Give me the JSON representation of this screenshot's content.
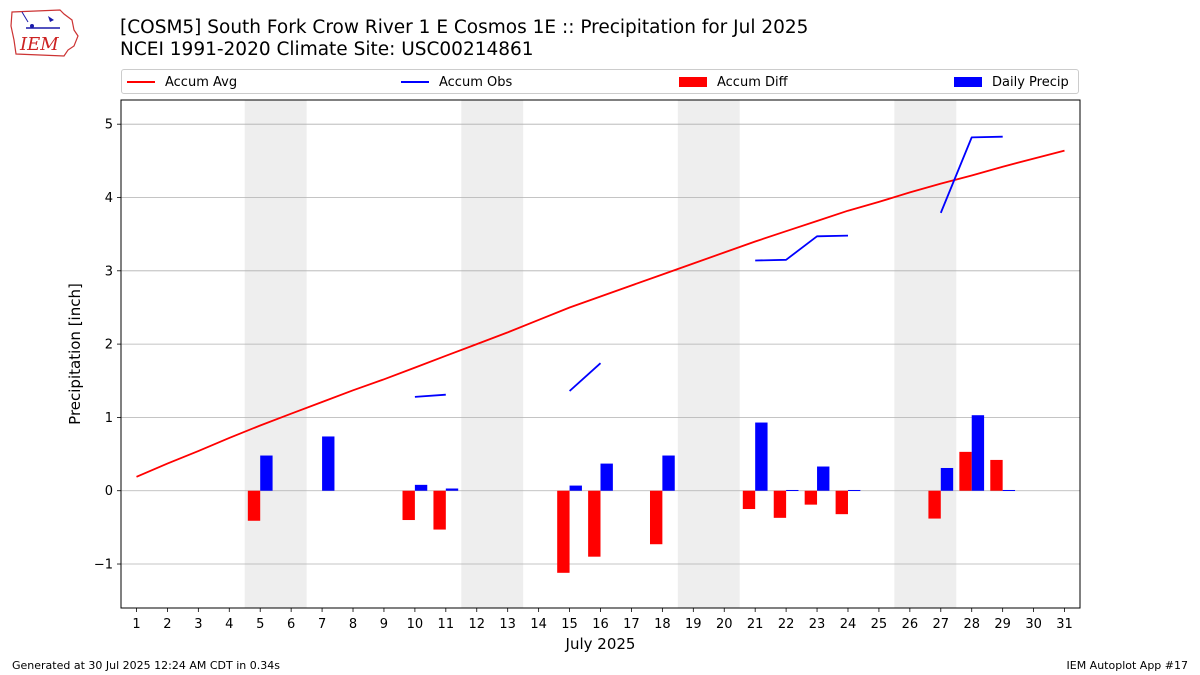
{
  "header": {
    "title_line1": "[COSM5] South Fork Crow River 1 E Cosmos 1E :: Precipitation for Jul 2025",
    "title_line2": "NCEI 1991-2020 Climate Site: USC00214861"
  },
  "logo": {
    "text": "IEM"
  },
  "legend": {
    "items": [
      {
        "label": "Accum Avg",
        "color": "#ff0000",
        "kind": "line"
      },
      {
        "label": "Accum Obs",
        "color": "#0000ff",
        "kind": "line"
      },
      {
        "label": "Accum Diff",
        "color": "#ff0000",
        "kind": "box"
      },
      {
        "label": "Daily Precip",
        "color": "#0000ff",
        "kind": "box"
      }
    ],
    "placement": "top, above plot"
  },
  "footer": {
    "generated": "Generated at 30 Jul 2025 12:24 AM CDT in 0.34s",
    "app": "IEM Autoplot App #17"
  },
  "chart_data": {
    "type": "bar",
    "title": "",
    "xlabel": "July 2025",
    "ylabel": "Precipitation [inch]",
    "xlim": [
      0.5,
      31.5
    ],
    "ylim": [
      -1.6,
      5.33
    ],
    "yticks": [
      -1,
      0,
      1,
      2,
      3,
      4,
      5
    ],
    "ytick_labels": [
      "−1",
      "0",
      "1",
      "2",
      "3",
      "4",
      "5"
    ],
    "x": [
      1,
      2,
      3,
      4,
      5,
      6,
      7,
      8,
      9,
      10,
      11,
      12,
      13,
      14,
      15,
      16,
      17,
      18,
      19,
      20,
      21,
      22,
      23,
      24,
      25,
      26,
      27,
      28,
      29,
      30,
      31
    ],
    "grid": "horizontal",
    "weekend_shading": [
      [
        4.5,
        6.5
      ],
      [
        11.5,
        13.5
      ],
      [
        18.5,
        20.5
      ],
      [
        25.5,
        27.5
      ]
    ],
    "series": [
      {
        "name": "Accum Avg",
        "kind": "line",
        "color": "#ff0000",
        "values": [
          0.19,
          0.37,
          0.54,
          0.72,
          0.89,
          1.05,
          1.21,
          1.37,
          1.52,
          1.68,
          1.84,
          2.0,
          2.16,
          2.33,
          2.5,
          2.65,
          2.8,
          2.95,
          3.1,
          3.25,
          3.4,
          3.54,
          3.68,
          3.82,
          3.94,
          4.07,
          4.19,
          4.3,
          4.42,
          4.53,
          4.64
        ]
      },
      {
        "name": "Accum Obs",
        "kind": "line",
        "color": "#0000ff",
        "values": [
          null,
          null,
          null,
          null,
          null,
          null,
          null,
          null,
          null,
          1.28,
          1.31,
          null,
          null,
          null,
          1.36,
          1.74,
          null,
          null,
          null,
          null,
          3.14,
          3.15,
          3.47,
          3.48,
          null,
          null,
          3.79,
          4.82,
          4.83,
          null,
          null
        ]
      },
      {
        "name": "Accum Diff",
        "kind": "bar",
        "color": "#ff0000",
        "offset": -0.2,
        "values": [
          null,
          null,
          null,
          null,
          -0.41,
          null,
          null,
          null,
          null,
          -0.4,
          -0.53,
          null,
          null,
          null,
          -1.12,
          -0.9,
          null,
          -0.73,
          null,
          null,
          -0.25,
          -0.37,
          -0.19,
          -0.32,
          null,
          null,
          -0.38,
          0.53,
          0.42,
          null,
          null
        ]
      },
      {
        "name": "Daily Precip",
        "kind": "bar",
        "color": "#0000ff",
        "offset": 0.2,
        "values": [
          null,
          null,
          null,
          null,
          0.48,
          null,
          0.74,
          null,
          null,
          0.08,
          0.03,
          null,
          null,
          null,
          0.07,
          0.37,
          null,
          0.48,
          null,
          null,
          0.93,
          0.01,
          0.33,
          0.01,
          null,
          null,
          0.31,
          1.03,
          0.01,
          null,
          null
        ]
      }
    ]
  }
}
